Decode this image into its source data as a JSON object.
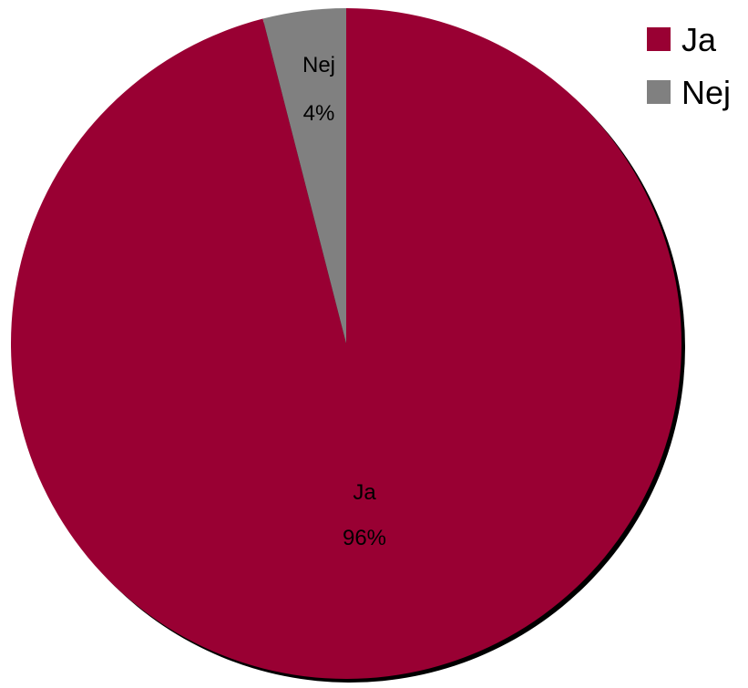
{
  "chart_data": {
    "type": "pie",
    "slices": [
      {
        "label": "Ja",
        "value": 96,
        "value_label": "96%",
        "color": "#990033"
      },
      {
        "label": "Nej",
        "value": 4,
        "value_label": "4%",
        "color": "#808080"
      }
    ],
    "start_angle_deg": 0,
    "direction": "clockwise",
    "legend": {
      "position": "top-right",
      "entries": [
        "Ja",
        "Nej"
      ]
    },
    "shadow": true
  }
}
